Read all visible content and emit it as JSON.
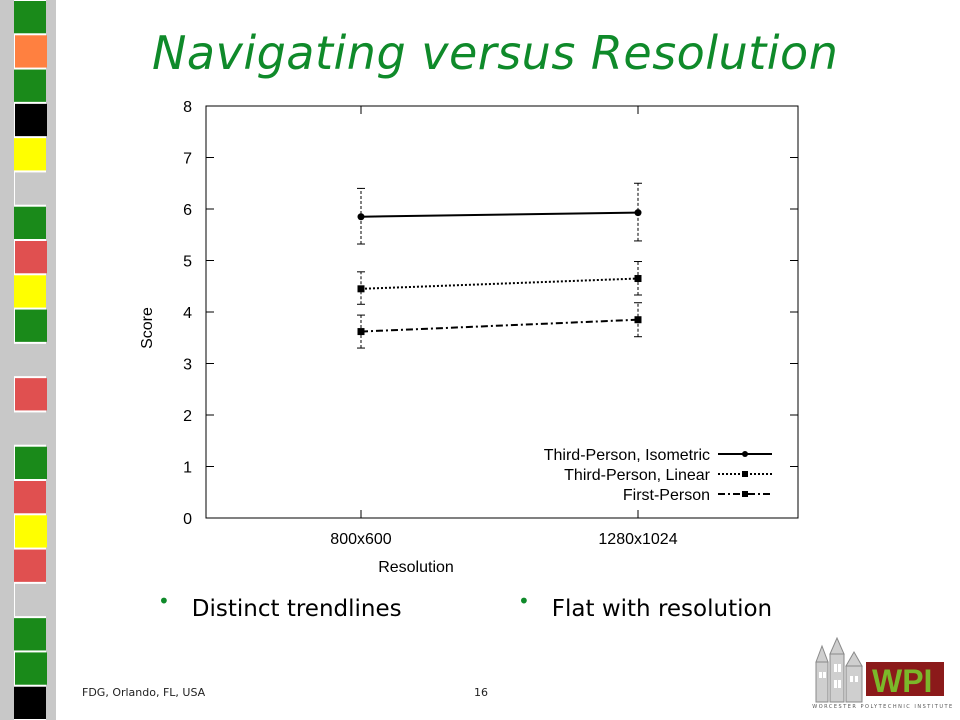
{
  "slide": {
    "title": "Navigating versus  Resolution",
    "bullets": [
      "Distinct trendlines",
      "Flat with resolution"
    ],
    "footer_left": "FDG, Orlando, FL, USA",
    "page_number": "16",
    "logo_text": "WPI",
    "logo_subtitle": "WORCESTER POLYTECHNIC INSTITUTE",
    "accent_color": "#0f8a2a"
  },
  "chart_data": {
    "type": "line",
    "title": "",
    "xlabel": "Resolution",
    "ylabel": "Score",
    "categories": [
      "800x600",
      "1280x1024"
    ],
    "ylim": [
      0,
      8
    ],
    "yticks": [
      "0",
      "1",
      "2",
      "3",
      "4",
      "5",
      "6",
      "7",
      "8"
    ],
    "grid": false,
    "error_bars": true,
    "legend_position": "bottom-right",
    "series": [
      {
        "name": "Third-Person, Isometric",
        "values": [
          5.85,
          5.93
        ],
        "err_low": [
          5.32,
          5.38
        ],
        "err_high": [
          6.4,
          6.5
        ],
        "style": "solid",
        "marker": "circle"
      },
      {
        "name": "Third-Person, Linear",
        "values": [
          4.45,
          4.65
        ],
        "err_low": [
          4.15,
          4.33
        ],
        "err_high": [
          4.78,
          4.98
        ],
        "style": "dotted",
        "marker": "square"
      },
      {
        "name": "First-Person",
        "values": [
          3.62,
          3.85
        ],
        "err_low": [
          3.3,
          3.52
        ],
        "err_high": [
          3.94,
          4.18
        ],
        "style": "dashdot",
        "marker": "square"
      }
    ]
  }
}
